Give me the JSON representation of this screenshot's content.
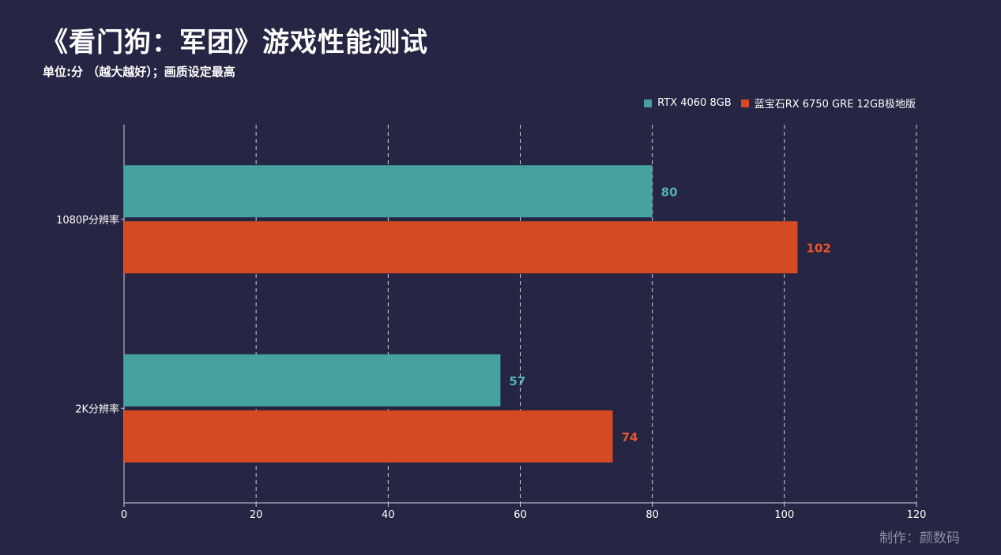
{
  "chart_data": {
    "type": "bar",
    "orientation": "horizontal",
    "title": "《看门狗：军团》游戏性能测试",
    "subtitle": "单位:分 （越大越好）；画质设定最高",
    "categories": [
      "1080P分辨率",
      "2K分辨率"
    ],
    "series": [
      {
        "name": "RTX 4060 8GB",
        "color": "#46a29f",
        "label_color": "#4fb3b0",
        "values": [
          80,
          57
        ]
      },
      {
        "name": "蓝宝石RX 6750 GRE 12GB极地版",
        "color": "#d44a22",
        "label_color": "#e8552c",
        "values": [
          102,
          74
        ]
      }
    ],
    "xlim": [
      0,
      120
    ],
    "xticks": [
      "0",
      "20",
      "40",
      "60",
      "80",
      "100",
      "120"
    ],
    "grid": "vertical-dashed",
    "legend_position": "top-right",
    "credit": "制作：颜数码"
  }
}
